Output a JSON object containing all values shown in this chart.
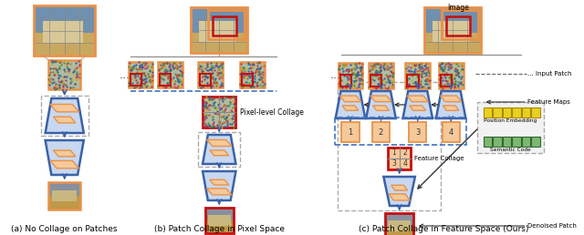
{
  "fig_width": 6.4,
  "fig_height": 2.58,
  "dpi": 100,
  "title_a": "(a) No Collage on Patches",
  "title_b": "(b) Patch Collage in Pixel Space",
  "title_c": "(c) Patch Collage in Feature Space (Ours)",
  "label_image": "Image",
  "label_input_patch": "... Input Patch",
  "label_feature_maps": "Feature Maps",
  "label_pixel_collage": "Pixel-level Collage",
  "label_feature_collage": "Feature Collage",
  "label_denoised_patch": "Denoised Patch",
  "label_position_embedding": "Position Embedding",
  "label_semantic_code": "Semantic Code",
  "orange_border": "#E8924A",
  "orange_fill": "#F5C99A",
  "blue_edge": "#3A62A8",
  "blue_fill": "#C8D8F0",
  "red_color": "#C41010",
  "dashed_blue": "#4472C4",
  "dashed_gray": "#AAAAAA",
  "yellow_color": "#E8D020",
  "green_color": "#7CB870",
  "img_sky_color": "#8BA8C8",
  "img_building_color": "#E8D8A8",
  "img_ground_color": "#C8A850",
  "noisy_color": "#B8C8A8"
}
